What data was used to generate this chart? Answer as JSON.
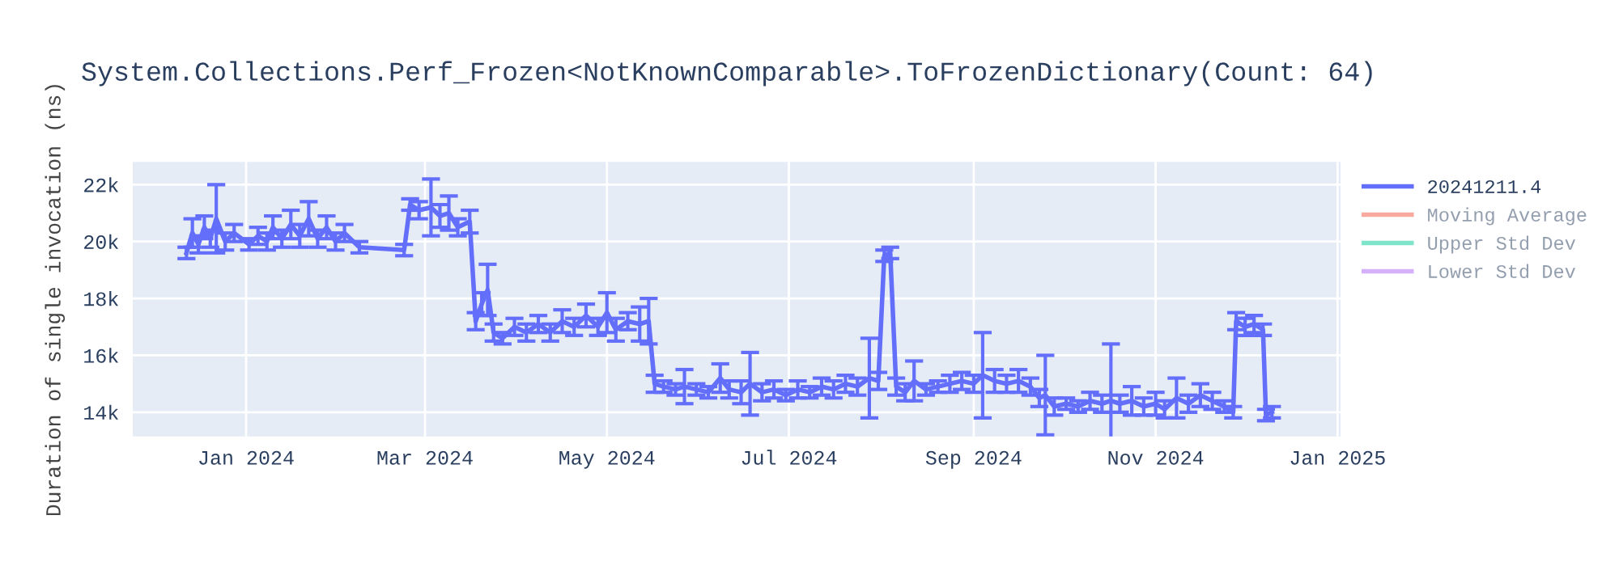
{
  "chart_data": {
    "type": "line",
    "title": "System.Collections.Perf_Frozen<NotKnownComparable>.ToFrozenDictionary(Count: 64)",
    "ylabel": "Duration of single invocation (ns)",
    "x": [
      "2023-12-12",
      "2023-12-14",
      "2023-12-16",
      "2023-12-18",
      "2023-12-20",
      "2023-12-22",
      "2023-12-25",
      "2023-12-28",
      "2024-01-02",
      "2024-01-05",
      "2024-01-08",
      "2024-01-10",
      "2024-01-13",
      "2024-01-16",
      "2024-01-19",
      "2024-01-22",
      "2024-01-25",
      "2024-01-28",
      "2024-01-31",
      "2024-02-03",
      "2024-02-08",
      "2024-02-23",
      "2024-02-25",
      "2024-02-28",
      "2024-03-03",
      "2024-03-06",
      "2024-03-09",
      "2024-03-12",
      "2024-03-16",
      "2024-03-18",
      "2024-03-20",
      "2024-03-22",
      "2024-03-24",
      "2024-03-27",
      "2024-03-31",
      "2024-04-04",
      "2024-04-08",
      "2024-04-12",
      "2024-04-16",
      "2024-04-20",
      "2024-04-24",
      "2024-04-28",
      "2024-05-01",
      "2024-05-04",
      "2024-05-08",
      "2024-05-12",
      "2024-05-15",
      "2024-05-17",
      "2024-05-20",
      "2024-05-24",
      "2024-05-27",
      "2024-05-31",
      "2024-06-04",
      "2024-06-08",
      "2024-06-11",
      "2024-06-15",
      "2024-06-18",
      "2024-06-22",
      "2024-06-26",
      "2024-06-30",
      "2024-07-04",
      "2024-07-08",
      "2024-07-12",
      "2024-07-16",
      "2024-07-20",
      "2024-07-24",
      "2024-07-28",
      "2024-07-31",
      "2024-08-02",
      "2024-08-04",
      "2024-08-06",
      "2024-08-09",
      "2024-08-12",
      "2024-08-16",
      "2024-08-20",
      "2024-08-24",
      "2024-08-28",
      "2024-09-01",
      "2024-09-04",
      "2024-09-08",
      "2024-09-12",
      "2024-09-16",
      "2024-09-20",
      "2024-09-23",
      "2024-09-25",
      "2024-09-28",
      "2024-10-02",
      "2024-10-06",
      "2024-10-10",
      "2024-10-14",
      "2024-10-17",
      "2024-10-20",
      "2024-10-24",
      "2024-10-28",
      "2024-11-01",
      "2024-11-04",
      "2024-11-08",
      "2024-11-12",
      "2024-11-16",
      "2024-11-20",
      "2024-11-24",
      "2024-11-27",
      "2024-11-28",
      "2024-12-01",
      "2024-12-04",
      "2024-12-07",
      "2024-12-08",
      "2024-12-10"
    ],
    "series": [
      {
        "name": "20241211.4",
        "color": "#636efa",
        "values": [
          19600,
          20300,
          19900,
          20500,
          20100,
          20800,
          20000,
          20300,
          19900,
          20200,
          20000,
          20500,
          20100,
          20600,
          20200,
          20800,
          20100,
          20500,
          20000,
          20300,
          19800,
          19700,
          21300,
          21100,
          21200,
          20900,
          21000,
          20500,
          20700,
          17200,
          17800,
          18300,
          16800,
          16600,
          17000,
          16800,
          17100,
          16800,
          17200,
          17000,
          17400,
          17000,
          17500,
          16900,
          17200,
          17100,
          17200,
          15000,
          14900,
          14800,
          14900,
          14800,
          14700,
          15200,
          14800,
          14700,
          15000,
          14700,
          14800,
          14600,
          14800,
          14700,
          14900,
          14800,
          15000,
          14900,
          15200,
          15100,
          19500,
          19600,
          14900,
          14700,
          15100,
          14800,
          14900,
          15000,
          15100,
          15000,
          15300,
          15100,
          15000,
          15100,
          14900,
          14500,
          14600,
          14200,
          14300,
          14200,
          14400,
          14300,
          14400,
          14300,
          14400,
          14200,
          14300,
          14100,
          14500,
          14300,
          14600,
          14400,
          14200,
          14000,
          17200,
          17000,
          17100,
          16900,
          13900,
          14000
        ],
        "errors": [
          200,
          500,
          300,
          400,
          300,
          1200,
          300,
          300,
          200,
          300,
          300,
          400,
          300,
          500,
          400,
          600,
          300,
          400,
          300,
          300,
          200,
          200,
          200,
          300,
          1000,
          400,
          600,
          300,
          400,
          300,
          400,
          900,
          300,
          200,
          300,
          300,
          300,
          300,
          400,
          300,
          400,
          300,
          700,
          400,
          300,
          600,
          800,
          300,
          200,
          200,
          600,
          200,
          200,
          500,
          300,
          400,
          1100,
          300,
          300,
          200,
          300,
          200,
          300,
          300,
          300,
          300,
          1400,
          300,
          200,
          200,
          300,
          300,
          700,
          200,
          200,
          300,
          300,
          300,
          1500,
          400,
          300,
          400,
          300,
          300,
          1400,
          300,
          200,
          200,
          300,
          300,
          2000,
          300,
          500,
          300,
          400,
          300,
          700,
          300,
          400,
          300,
          200,
          200,
          300,
          300,
          300,
          200,
          200,
          200
        ]
      },
      {
        "name": "Moving Average",
        "color": "#ef553b",
        "values": [
          null,
          null,
          null,
          null,
          null,
          null,
          null,
          null,
          null,
          null,
          null,
          null,
          null,
          null,
          null,
          null,
          null,
          null,
          null,
          null,
          null,
          null,
          null,
          null,
          null,
          null,
          null,
          null,
          null,
          null,
          null,
          null,
          null,
          null,
          null,
          null,
          null,
          null,
          null,
          null,
          null,
          null,
          null,
          null,
          null,
          null,
          null,
          null,
          null,
          null,
          null,
          null,
          null,
          null,
          null,
          null,
          null,
          null,
          null,
          null,
          null,
          null,
          null,
          null,
          null,
          null,
          null,
          null,
          null,
          null,
          null,
          null,
          null,
          null,
          null,
          null,
          null,
          null,
          null,
          null,
          null,
          null,
          null,
          null,
          null,
          null,
          null,
          null,
          null,
          null,
          null,
          null,
          null,
          null,
          null,
          null,
          null,
          null,
          null,
          null,
          null,
          null,
          null,
          null,
          null,
          null,
          null,
          null
        ]
      },
      {
        "name": "Upper Std Dev",
        "color": "#00cc96",
        "values": [
          null,
          null,
          null,
          null,
          null,
          null,
          null,
          null,
          null,
          null,
          null,
          null,
          null,
          null,
          null,
          null,
          null,
          null,
          null,
          null,
          null,
          null,
          null,
          null,
          null,
          null,
          null,
          null,
          null,
          null,
          null,
          null,
          null,
          null,
          null,
          null,
          null,
          null,
          null,
          null,
          null,
          null,
          null,
          null,
          null,
          null,
          null,
          null,
          null,
          null,
          null,
          null,
          null,
          null,
          null,
          null,
          null,
          null,
          null,
          null,
          null,
          null,
          null,
          null,
          null,
          null,
          null,
          null,
          null,
          null,
          null,
          null,
          null,
          null,
          null,
          null,
          null,
          null,
          null,
          null,
          null,
          null,
          null,
          null,
          null,
          null,
          null,
          null,
          null,
          null,
          null,
          null,
          null,
          null,
          null,
          null,
          null,
          null,
          null,
          null,
          null,
          null,
          null,
          null,
          null,
          null,
          null,
          null
        ]
      },
      {
        "name": "Lower Std Dev",
        "color": "#ab63fa",
        "values": [
          null,
          null,
          null,
          null,
          null,
          null,
          null,
          null,
          null,
          null,
          null,
          null,
          null,
          null,
          null,
          null,
          null,
          null,
          null,
          null,
          null,
          null,
          null,
          null,
          null,
          null,
          null,
          null,
          null,
          null,
          null,
          null,
          null,
          null,
          null,
          null,
          null,
          null,
          null,
          null,
          null,
          null,
          null,
          null,
          null,
          null,
          null,
          null,
          null,
          null,
          null,
          null,
          null,
          null,
          null,
          null,
          null,
          null,
          null,
          null,
          null,
          null,
          null,
          null,
          null,
          null,
          null,
          null,
          null,
          null,
          null,
          null,
          null,
          null,
          null,
          null,
          null,
          null,
          null,
          null,
          null,
          null,
          null,
          null,
          null,
          null,
          null,
          null,
          null,
          null,
          null,
          null,
          null,
          null,
          null,
          null,
          null,
          null,
          null,
          null,
          null,
          null,
          null,
          null,
          null,
          null,
          null,
          null
        ]
      }
    ],
    "xlim": [
      "2023-11-24",
      "2025-01-02"
    ],
    "xticks": [
      {
        "value": "2024-01-01",
        "label": "Jan 2024"
      },
      {
        "value": "2024-03-01",
        "label": "Mar 2024"
      },
      {
        "value": "2024-05-01",
        "label": "May 2024"
      },
      {
        "value": "2024-07-01",
        "label": "Jul 2024"
      },
      {
        "value": "2024-09-01",
        "label": "Sep 2024"
      },
      {
        "value": "2024-11-01",
        "label": "Nov 2024"
      },
      {
        "value": "2025-01-01",
        "label": "Jan 2025"
      }
    ],
    "ylim": [
      13150,
      22800
    ],
    "yticks": [
      {
        "value": 14000,
        "label": "14k"
      },
      {
        "value": 16000,
        "label": "16k"
      },
      {
        "value": 18000,
        "label": "18k"
      },
      {
        "value": 20000,
        "label": "20k"
      },
      {
        "value": 22000,
        "label": "22k"
      }
    ],
    "grid": true,
    "legend": "right",
    "marker": "none",
    "line_style": "solid"
  }
}
